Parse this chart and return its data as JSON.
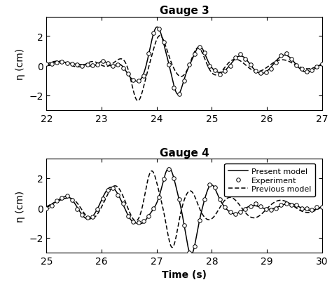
{
  "title_g3": "Gauge 3",
  "title_g4": "Gauge 4",
  "xlabel": "Time (s)",
  "ylabel": "η (cm)",
  "g3_xlim": [
    22,
    27
  ],
  "g4_xlim": [
    25,
    30
  ],
  "ylim": [
    -3.0,
    3.3
  ],
  "yticks": [
    -2,
    0,
    2
  ],
  "g3_xticks": [
    22,
    23,
    24,
    25,
    26,
    27
  ],
  "g4_xticks": [
    25,
    26,
    27,
    28,
    29,
    30
  ],
  "legend_labels": [
    "Present model",
    "Experiment",
    "Previous model"
  ],
  "background_color": "#ffffff",
  "font_size": 10,
  "title_font_size": 11
}
